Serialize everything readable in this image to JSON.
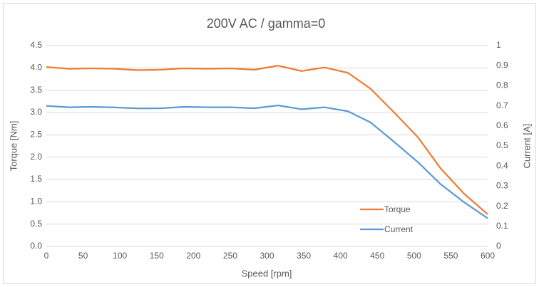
{
  "chart_data": {
    "type": "line",
    "title": "200V AC / gamma=0",
    "x_label": "Speed [rpm]",
    "y_label": "Torque [Nm]",
    "y2_label": "Current [A]",
    "x": [
      0,
      31,
      62,
      94,
      125,
      156,
      188,
      219,
      250,
      283,
      315,
      347,
      378,
      410,
      441,
      473,
      505,
      536,
      568,
      600
    ],
    "series": [
      {
        "name": "Torque",
        "color": "#ed7d31",
        "values": [
          4.02,
          3.98,
          3.99,
          3.98,
          3.95,
          3.96,
          3.99,
          3.98,
          3.99,
          3.96,
          4.05,
          3.93,
          4.01,
          3.89,
          3.53,
          3.0,
          2.45,
          1.75,
          1.18,
          0.72
        ]
      },
      {
        "name": "Current",
        "color": "#5b9bd5",
        "axis": "y2",
        "values": [
          0.7,
          0.693,
          0.695,
          0.692,
          0.687,
          0.688,
          0.695,
          0.693,
          0.693,
          0.688,
          0.702,
          0.683,
          0.693,
          0.673,
          0.617,
          0.52,
          0.42,
          0.31,
          0.22,
          0.14
        ]
      }
    ],
    "xlim": [
      0,
      600
    ],
    "xticks": [
      0,
      50,
      100,
      150,
      200,
      250,
      300,
      350,
      400,
      450,
      500,
      550,
      600
    ],
    "ylim": [
      0,
      4.5
    ],
    "yticks": [
      {
        "value": 0,
        "label": "0.0"
      },
      0.5,
      {
        "value": 1,
        "label": "1.0"
      },
      1.5,
      {
        "value": 2,
        "label": "2.0"
      },
      2.5,
      {
        "value": 3,
        "label": "3.0"
      },
      3.5,
      {
        "value": 4,
        "label": "4.0"
      },
      4.5
    ],
    "y2lim": [
      0,
      1
    ],
    "y2ticks": [
      0,
      0.1,
      0.2,
      0.3,
      0.4,
      0.5,
      0.6,
      0.7,
      0.8,
      0.9,
      1
    ],
    "grid": true,
    "legend": "lower right"
  }
}
